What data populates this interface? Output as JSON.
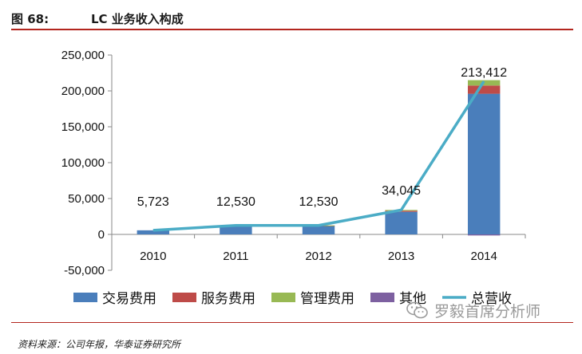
{
  "figure": {
    "label": "图 68:",
    "title": "LC 业务收入构成"
  },
  "source": "资料来源：公司年报，华泰证券研究所",
  "watermark": {
    "text": "罗毅首席分析师",
    "icon": "wechat-icon"
  },
  "chart_data": {
    "type": "bar",
    "stacked": true,
    "title": "LC 业务收入构成",
    "xlabel": "",
    "ylabel": "",
    "categories": [
      "2010",
      "2011",
      "2012",
      "2013",
      "2014"
    ],
    "ylim": [
      -50000,
      250000
    ],
    "yticks": [
      -50000,
      0,
      50000,
      100000,
      150000,
      200000,
      250000
    ],
    "ytick_labels": [
      "-50,000",
      "0",
      "50,000",
      "100,000",
      "150,000",
      "200,000",
      "250,000"
    ],
    "grid": false,
    "legend_position": "bottom",
    "series": [
      {
        "name": "交易费用",
        "kind": "bar",
        "color": "#4a7ebb",
        "values": [
          5723,
          11000,
          11800,
          31500,
          196000
        ]
      },
      {
        "name": "服务费用",
        "kind": "bar",
        "color": "#be4b48",
        "values": [
          0,
          1300,
          500,
          1500,
          11500
        ]
      },
      {
        "name": "管理费用",
        "kind": "bar",
        "color": "#98b954",
        "values": [
          0,
          230,
          230,
          1045,
          7412
        ]
      },
      {
        "name": "其他",
        "kind": "bar",
        "color": "#7d60a0",
        "values": [
          0,
          0,
          0,
          0,
          -1500
        ]
      },
      {
        "name": "总营收",
        "kind": "line",
        "color": "#4bacc6",
        "values": [
          5723,
          12530,
          12530,
          34045,
          213412
        ]
      }
    ],
    "data_labels": [
      "5,723",
      "12,530",
      "12,530",
      "34,045",
      "213,412"
    ]
  }
}
